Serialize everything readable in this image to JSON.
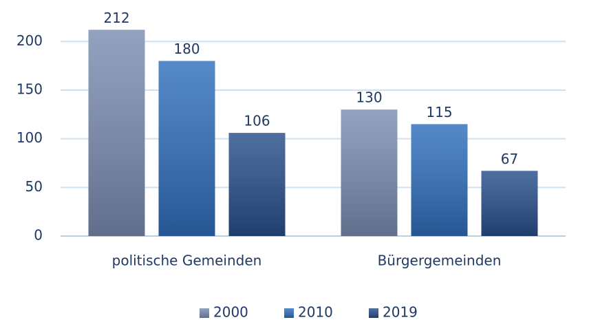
{
  "chart_data": {
    "type": "bar",
    "categories": [
      "politische Gemeinden",
      "Bürgergemeinden"
    ],
    "series": [
      {
        "name": "2000",
        "color": "#7b8db2",
        "values": [
          212,
          130
        ]
      },
      {
        "name": "2010",
        "color": "#306fbd",
        "values": [
          180,
          115
        ]
      },
      {
        "name": "2019",
        "color": "#284f8c",
        "values": [
          106,
          67
        ]
      }
    ],
    "ylim": [
      0,
      220
    ],
    "yticks": [
      0,
      50,
      100,
      150,
      200
    ],
    "grid": true,
    "legend": "bottom"
  }
}
